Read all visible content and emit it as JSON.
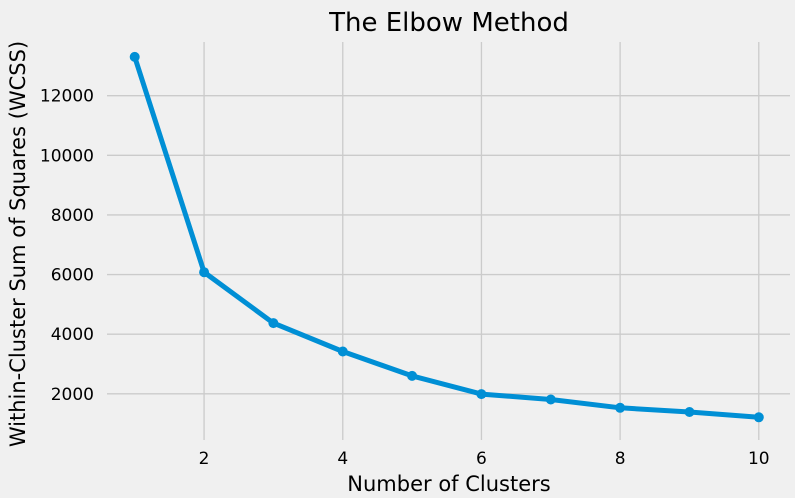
{
  "chart_data": {
    "type": "line",
    "title": "The Elbow Method",
    "xlabel": "Number of Clusters",
    "ylabel": "Within-Cluster Sum of Squares (WCSS)",
    "x": [
      1,
      2,
      3,
      4,
      5,
      6,
      7,
      8,
      9,
      10
    ],
    "series": [
      {
        "values": [
          13300,
          6080,
          4370,
          3420,
          2600,
          1990,
          1810,
          1530,
          1390,
          1210
        ]
      }
    ],
    "xlim": [
      0.6,
      10.45
    ],
    "ylim": [
      450,
      13800
    ],
    "xticks": [
      2,
      4,
      6,
      8,
      10
    ],
    "yticks": [
      2000,
      4000,
      6000,
      8000,
      10000,
      12000
    ],
    "xtick_labels": [
      "2",
      "4",
      "6",
      "8",
      "10"
    ],
    "ytick_labels": [
      "2000",
      "4000",
      "6000",
      "8000",
      "10000",
      "12000"
    ],
    "grid": true,
    "colors": {
      "line": "#008fd5",
      "background": "#f0f0f0",
      "grid": "#cbcbcb"
    }
  }
}
